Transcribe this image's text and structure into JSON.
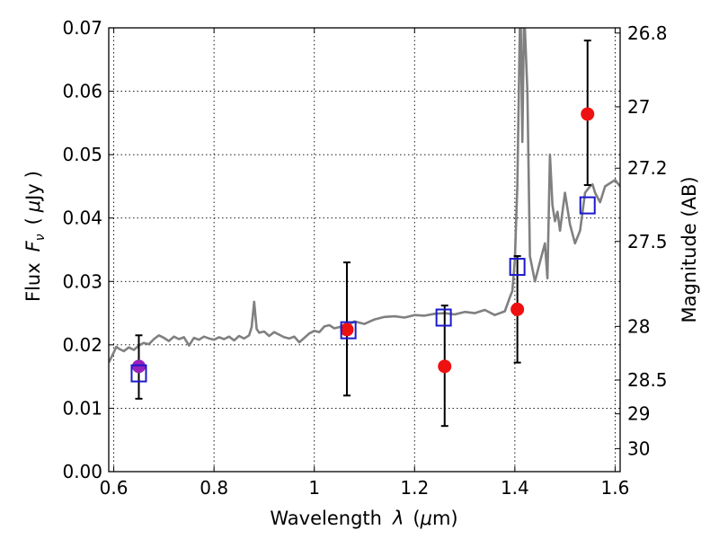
{
  "chart_data": {
    "type": "scatter",
    "xlabel_parts": [
      "Wavelength",
      "λ",
      "(",
      "μ",
      "m)"
    ],
    "ylabel_parts": [
      "Flux",
      "F",
      "ν",
      "(",
      "μ",
      "Jy",
      ")"
    ],
    "y2label": "Magnitude (AB)",
    "xlim": [
      0.59,
      1.61
    ],
    "ylim": [
      0.0,
      0.07
    ],
    "x_ticks": [
      0.6,
      0.8,
      1.0,
      1.2,
      1.4,
      1.6
    ],
    "x_tick_labels": [
      "0.6",
      "0.8",
      "1",
      "1.2",
      "1.4",
      "1.6"
    ],
    "y_ticks": [
      0.0,
      0.01,
      0.02,
      0.03,
      0.04,
      0.05,
      0.06,
      0.07
    ],
    "y_tick_labels": [
      "0.00",
      "0.01",
      "0.02",
      "0.03",
      "0.04",
      "0.05",
      "0.06",
      "0.07"
    ],
    "y2_ticks": [
      26.8,
      27.0,
      27.2,
      27.5,
      28.0,
      28.5,
      29.0,
      30.0
    ],
    "y2_tick_labels": [
      "26.8",
      "27",
      "27.2",
      "27.5",
      "28",
      "28.5",
      "29",
      "30"
    ],
    "grid": true,
    "colors": {
      "observed": "#ee1111",
      "observed_first": "#9922bb",
      "model_box": "#1a1acc",
      "spectrum": "#808080",
      "errorbar": "#000000"
    },
    "series": [
      {
        "kind": "observed_points_with_errorbars",
        "points": [
          {
            "x": 0.65,
            "y": 0.0166,
            "lo": 0.0115,
            "hi": 0.0215
          },
          {
            "x": 1.065,
            "y": 0.0224,
            "lo": 0.012,
            "hi": 0.033
          },
          {
            "x": 1.26,
            "y": 0.0166,
            "lo": 0.0072,
            "hi": 0.0262
          },
          {
            "x": 1.405,
            "y": 0.0256,
            "lo": 0.0172,
            "hi": 0.034
          },
          {
            "x": 1.545,
            "y": 0.0564,
            "lo": 0.0452,
            "hi": 0.068
          }
        ]
      },
      {
        "kind": "model_synthetic_photometry",
        "points": [
          {
            "x": 0.65,
            "y": 0.0155
          },
          {
            "x": 1.068,
            "y": 0.0223
          },
          {
            "x": 1.258,
            "y": 0.0243
          },
          {
            "x": 1.405,
            "y": 0.0323
          },
          {
            "x": 1.545,
            "y": 0.042
          }
        ]
      },
      {
        "kind": "model_spectrum",
        "x": [
          0.59,
          0.6,
          0.605,
          0.61,
          0.62,
          0.63,
          0.64,
          0.65,
          0.66,
          0.67,
          0.68,
          0.69,
          0.7,
          0.71,
          0.72,
          0.73,
          0.74,
          0.75,
          0.76,
          0.77,
          0.78,
          0.79,
          0.8,
          0.81,
          0.82,
          0.83,
          0.84,
          0.85,
          0.86,
          0.87,
          0.875,
          0.88,
          0.885,
          0.89,
          0.9,
          0.91,
          0.92,
          0.93,
          0.94,
          0.95,
          0.96,
          0.97,
          0.98,
          0.99,
          1.0,
          1.01,
          1.02,
          1.03,
          1.04,
          1.05,
          1.06,
          1.07,
          1.08,
          1.1,
          1.12,
          1.14,
          1.16,
          1.18,
          1.2,
          1.22,
          1.24,
          1.26,
          1.28,
          1.3,
          1.32,
          1.34,
          1.36,
          1.38,
          1.39,
          1.395,
          1.4,
          1.405,
          1.41,
          1.412,
          1.415,
          1.418,
          1.42,
          1.425,
          1.43,
          1.44,
          1.45,
          1.455,
          1.46,
          1.465,
          1.47,
          1.475,
          1.48,
          1.485,
          1.49,
          1.5,
          1.51,
          1.52,
          1.53,
          1.54,
          1.55,
          1.555,
          1.56,
          1.57,
          1.58,
          1.59,
          1.6,
          1.61
        ],
        "y": [
          0.0172,
          0.0188,
          0.0197,
          0.0194,
          0.019,
          0.0196,
          0.0192,
          0.0199,
          0.0203,
          0.0201,
          0.0209,
          0.0215,
          0.0211,
          0.0206,
          0.0213,
          0.0209,
          0.0212,
          0.0199,
          0.0211,
          0.0208,
          0.0213,
          0.021,
          0.0208,
          0.0212,
          0.0209,
          0.0213,
          0.0207,
          0.0214,
          0.021,
          0.0215,
          0.0228,
          0.0268,
          0.0225,
          0.0219,
          0.0221,
          0.0214,
          0.022,
          0.0216,
          0.0212,
          0.021,
          0.0213,
          0.0204,
          0.0211,
          0.0218,
          0.0222,
          0.022,
          0.0229,
          0.0231,
          0.0226,
          0.0228,
          0.0231,
          0.0232,
          0.0237,
          0.0233,
          0.024,
          0.0244,
          0.0245,
          0.0243,
          0.0247,
          0.0246,
          0.0249,
          0.025,
          0.0248,
          0.0252,
          0.025,
          0.0255,
          0.0247,
          0.0253,
          0.0275,
          0.0285,
          0.0335,
          0.045,
          0.07,
          0.07,
          0.052,
          0.07,
          0.07,
          0.06,
          0.034,
          0.03,
          0.033,
          0.0345,
          0.036,
          0.0305,
          0.05,
          0.042,
          0.0395,
          0.041,
          0.038,
          0.044,
          0.039,
          0.036,
          0.038,
          0.044,
          0.045,
          0.0453,
          0.044,
          0.0425,
          0.045,
          0.0455,
          0.046,
          0.045
        ]
      }
    ]
  }
}
